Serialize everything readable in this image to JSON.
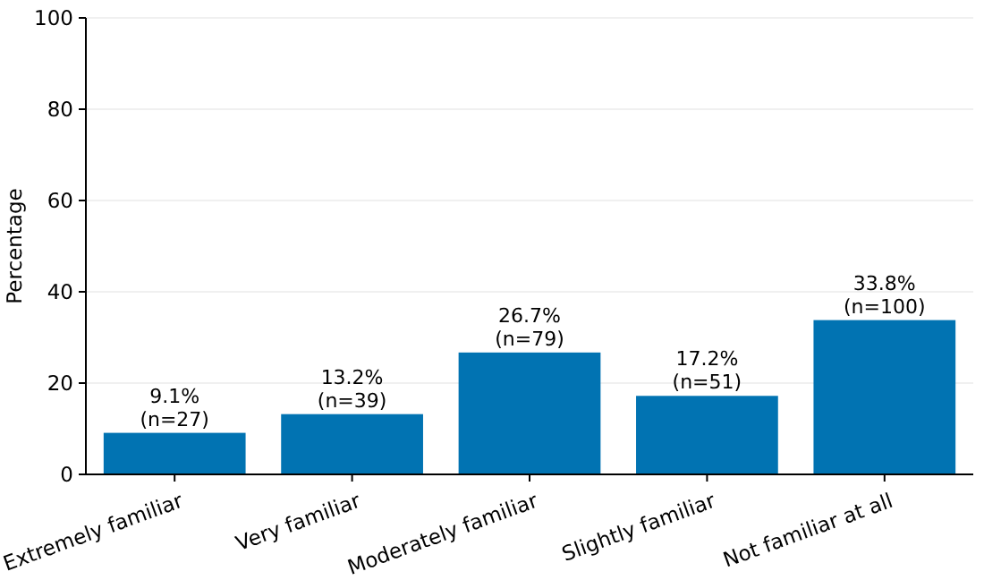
{
  "chart_data": {
    "type": "bar",
    "ylabel": "Percentage",
    "categories": [
      "Extremely familiar",
      "Very familiar",
      "Moderately familiar",
      "Slightly familiar",
      "Not familiar at all"
    ],
    "values": [
      9.1,
      13.2,
      26.7,
      17.2,
      33.8
    ],
    "value_labels": [
      "9.1%\n(n=27)",
      "13.2%\n(n=39)",
      "26.7%\n(n=79)",
      "17.2%\n(n=51)",
      "33.8%\n(n=100)"
    ],
    "color": "#0173b2",
    "ylim": [
      0,
      100
    ],
    "yticks": [
      0,
      20,
      40,
      60,
      80,
      100
    ],
    "grid": "y"
  }
}
